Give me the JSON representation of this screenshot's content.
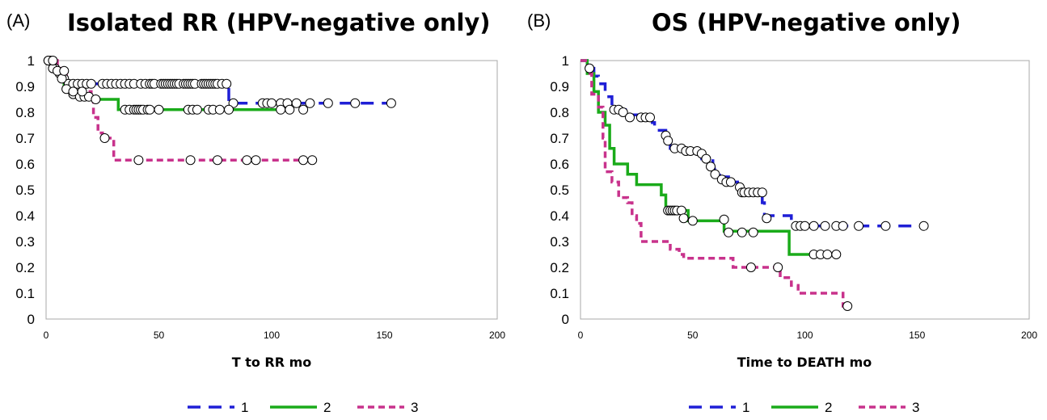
{
  "chart_data": [
    {
      "type": "line",
      "subtype": "kaplan-meier-step",
      "panel_label": "(A)",
      "title": "Isolated RR (HPV-negative only)",
      "xlabel": "T to RR mo",
      "ylabel": "",
      "xlim": [
        0,
        200
      ],
      "ylim": [
        0,
        1
      ],
      "xticks": [
        0,
        50,
        100,
        150,
        200
      ],
      "yticks": [
        0,
        0.1,
        0.2,
        0.3,
        0.4,
        0.5,
        0.6,
        0.7,
        0.8,
        0.9,
        1
      ],
      "legend_position": "bottom",
      "grid": false,
      "series": [
        {
          "name": "1",
          "color": "#1f1fd6",
          "dash": "long-dash",
          "steps": [
            [
              0,
              1
            ],
            [
              3,
              0.97
            ],
            [
              5,
              0.95
            ],
            [
              7,
              0.93
            ],
            [
              9,
              0.91
            ],
            [
              81,
              0.91
            ],
            [
              81,
              0.835
            ],
            [
              154,
              0.835
            ]
          ],
          "censors": [
            [
              1,
              1
            ],
            [
              2,
              1
            ],
            [
              4,
              0.97
            ],
            [
              6,
              0.95
            ],
            [
              8,
              0.93
            ],
            [
              10,
              0.91
            ],
            [
              12,
              0.91
            ],
            [
              14,
              0.91
            ],
            [
              16,
              0.91
            ],
            [
              18,
              0.91
            ],
            [
              20,
              0.91
            ],
            [
              25,
              0.91
            ],
            [
              27,
              0.91
            ],
            [
              29,
              0.91
            ],
            [
              31,
              0.91
            ],
            [
              33,
              0.91
            ],
            [
              35,
              0.91
            ],
            [
              37,
              0.91
            ],
            [
              39,
              0.91
            ],
            [
              42,
              0.91
            ],
            [
              44,
              0.91
            ],
            [
              46,
              0.91
            ],
            [
              47,
              0.91
            ],
            [
              48,
              0.91
            ],
            [
              51,
              0.91
            ],
            [
              52,
              0.91
            ],
            [
              53,
              0.91
            ],
            [
              54,
              0.91
            ],
            [
              55,
              0.91
            ],
            [
              56,
              0.91
            ],
            [
              57,
              0.91
            ],
            [
              58,
              0.91
            ],
            [
              59,
              0.91
            ],
            [
              61,
              0.91
            ],
            [
              62,
              0.91
            ],
            [
              63,
              0.91
            ],
            [
              64,
              0.91
            ],
            [
              65,
              0.91
            ],
            [
              66,
              0.91
            ],
            [
              69,
              0.91
            ],
            [
              70,
              0.91
            ],
            [
              71,
              0.91
            ],
            [
              72,
              0.91
            ],
            [
              73,
              0.91
            ],
            [
              74,
              0.91
            ],
            [
              75,
              0.91
            ],
            [
              76,
              0.91
            ],
            [
              78,
              0.91
            ],
            [
              80,
              0.91
            ],
            [
              83,
              0.835
            ],
            [
              96,
              0.835
            ],
            [
              98,
              0.835
            ],
            [
              100,
              0.835
            ],
            [
              104,
              0.835
            ],
            [
              107,
              0.835
            ],
            [
              111,
              0.835
            ],
            [
              117,
              0.835
            ],
            [
              125,
              0.835
            ],
            [
              137,
              0.835
            ],
            [
              153,
              0.835
            ]
          ]
        },
        {
          "name": "2",
          "color": "#1aab1a",
          "dash": "solid",
          "steps": [
            [
              0,
              1
            ],
            [
              4,
              0.96
            ],
            [
              6,
              0.93
            ],
            [
              8,
              0.89
            ],
            [
              11,
              0.87
            ],
            [
              14,
              0.86
            ],
            [
              20,
              0.85
            ],
            [
              32,
              0.85
            ],
            [
              32,
              0.81
            ],
            [
              100,
              0.81
            ],
            [
              102,
              0.81
            ]
          ],
          "censors": [
            [
              1,
              1
            ],
            [
              3,
              0.97
            ],
            [
              5,
              0.96
            ],
            [
              7,
              0.93
            ],
            [
              9,
              0.89
            ],
            [
              12,
              0.87
            ],
            [
              15,
              0.86
            ],
            [
              17,
              0.86
            ],
            [
              19,
              0.86
            ],
            [
              22,
              0.85
            ],
            [
              35,
              0.81
            ],
            [
              37,
              0.81
            ],
            [
              39,
              0.81
            ],
            [
              40,
              0.81
            ],
            [
              41,
              0.81
            ],
            [
              42,
              0.81
            ],
            [
              43,
              0.81
            ],
            [
              45,
              0.81
            ],
            [
              46,
              0.81
            ],
            [
              50,
              0.81
            ],
            [
              63,
              0.81
            ],
            [
              65,
              0.81
            ],
            [
              67,
              0.81
            ],
            [
              72,
              0.81
            ],
            [
              74,
              0.81
            ],
            [
              77,
              0.81
            ],
            [
              81,
              0.81
            ],
            [
              104,
              0.81
            ],
            [
              108,
              0.81
            ],
            [
              114,
              0.81
            ]
          ]
        },
        {
          "name": "3",
          "color": "#c8328c",
          "dash": "short-dash",
          "steps": [
            [
              0,
              1
            ],
            [
              5,
              0.97
            ],
            [
              7,
              0.95
            ],
            [
              9,
              0.89
            ],
            [
              14,
              0.88
            ],
            [
              20,
              0.86
            ],
            [
              21,
              0.78
            ],
            [
              23,
              0.72
            ],
            [
              25,
              0.7
            ],
            [
              30,
              0.7
            ],
            [
              30,
              0.615
            ],
            [
              114,
              0.615
            ]
          ],
          "censors": [
            [
              3,
              1
            ],
            [
              8,
              0.96
            ],
            [
              12,
              0.88
            ],
            [
              16,
              0.88
            ],
            [
              26,
              0.7
            ],
            [
              41,
              0.615
            ],
            [
              64,
              0.615
            ],
            [
              76,
              0.615
            ],
            [
              89,
              0.615
            ],
            [
              93,
              0.615
            ],
            [
              114,
              0.615
            ],
            [
              118,
              0.615
            ]
          ]
        }
      ]
    },
    {
      "type": "line",
      "subtype": "kaplan-meier-step",
      "panel_label": "(B)",
      "title": "OS (HPV-negative only)",
      "xlabel": "Time to DEATH mo",
      "ylabel": "",
      "xlim": [
        0,
        200
      ],
      "ylim": [
        0,
        1
      ],
      "xticks": [
        0,
        50,
        100,
        150,
        200
      ],
      "yticks": [
        0,
        0.1,
        0.2,
        0.3,
        0.4,
        0.5,
        0.6,
        0.7,
        0.8,
        0.9,
        1
      ],
      "legend_position": "bottom",
      "grid": false,
      "series": [
        {
          "name": "1",
          "color": "#1f1fd6",
          "dash": "long-dash",
          "steps": [
            [
              0,
              1
            ],
            [
              3,
              0.97
            ],
            [
              6,
              0.94
            ],
            [
              8,
              0.91
            ],
            [
              11,
              0.86
            ],
            [
              14,
              0.81
            ],
            [
              20,
              0.79
            ],
            [
              26,
              0.78
            ],
            [
              32,
              0.76
            ],
            [
              33,
              0.73
            ],
            [
              37,
              0.73
            ],
            [
              38,
              0.69
            ],
            [
              40,
              0.66
            ],
            [
              48,
              0.65
            ],
            [
              54,
              0.62
            ],
            [
              59,
              0.58
            ],
            [
              62,
              0.55
            ],
            [
              66,
              0.53
            ],
            [
              70,
              0.5
            ],
            [
              81,
              0.5
            ],
            [
              81,
              0.45
            ],
            [
              82,
              0.4
            ],
            [
              91,
              0.4
            ],
            [
              94,
              0.36
            ],
            [
              154,
              0.36
            ]
          ],
          "censors": [
            [
              4,
              0.97
            ],
            [
              15,
              0.81
            ],
            [
              17,
              0.81
            ],
            [
              19,
              0.8
            ],
            [
              22,
              0.78
            ],
            [
              27,
              0.78
            ],
            [
              29,
              0.78
            ],
            [
              31,
              0.78
            ],
            [
              38,
              0.71
            ],
            [
              39,
              0.69
            ],
            [
              42,
              0.66
            ],
            [
              45,
              0.66
            ],
            [
              47,
              0.65
            ],
            [
              49,
              0.65
            ],
            [
              52,
              0.65
            ],
            [
              54,
              0.64
            ],
            [
              56,
              0.62
            ],
            [
              58,
              0.59
            ],
            [
              60,
              0.56
            ],
            [
              63,
              0.54
            ],
            [
              65,
              0.53
            ],
            [
              67,
              0.53
            ],
            [
              71,
              0.51
            ],
            [
              72,
              0.49
            ],
            [
              73,
              0.49
            ],
            [
              75,
              0.49
            ],
            [
              77,
              0.49
            ],
            [
              79,
              0.49
            ],
            [
              81,
              0.49
            ],
            [
              83,
              0.39
            ],
            [
              96,
              0.36
            ],
            [
              98,
              0.36
            ],
            [
              100,
              0.36
            ],
            [
              104,
              0.36
            ],
            [
              109,
              0.36
            ],
            [
              114,
              0.36
            ],
            [
              117,
              0.36
            ],
            [
              124,
              0.36
            ],
            [
              136,
              0.36
            ],
            [
              153,
              0.36
            ]
          ]
        },
        {
          "name": "2",
          "color": "#1aab1a",
          "dash": "solid",
          "steps": [
            [
              0,
              1
            ],
            [
              3,
              0.95
            ],
            [
              6,
              0.88
            ],
            [
              8,
              0.8
            ],
            [
              11,
              0.75
            ],
            [
              13,
              0.66
            ],
            [
              15,
              0.6
            ],
            [
              21,
              0.6
            ],
            [
              21,
              0.56
            ],
            [
              25,
              0.52
            ],
            [
              36,
              0.52
            ],
            [
              36,
              0.48
            ],
            [
              38,
              0.44
            ],
            [
              38,
              0.42
            ],
            [
              48,
              0.42
            ],
            [
              48,
              0.38
            ],
            [
              64,
              0.38
            ],
            [
              64,
              0.34
            ],
            [
              93,
              0.34
            ],
            [
              93,
              0.25
            ],
            [
              109,
              0.25
            ]
          ],
          "censors": [
            [
              39,
              0.42
            ],
            [
              40,
              0.42
            ],
            [
              41,
              0.42
            ],
            [
              42,
              0.42
            ],
            [
              43,
              0.42
            ],
            [
              45,
              0.42
            ],
            [
              46,
              0.39
            ],
            [
              50,
              0.38
            ],
            [
              64,
              0.385
            ],
            [
              66,
              0.335
            ],
            [
              72,
              0.335
            ],
            [
              77,
              0.335
            ],
            [
              104,
              0.25
            ],
            [
              107,
              0.25
            ],
            [
              110,
              0.25
            ],
            [
              114,
              0.25
            ]
          ]
        },
        {
          "name": "3",
          "color": "#c8328c",
          "dash": "short-dash",
          "steps": [
            [
              0,
              1
            ],
            [
              3,
              0.95
            ],
            [
              5,
              0.87
            ],
            [
              8,
              0.82
            ],
            [
              10,
              0.7
            ],
            [
              11,
              0.57
            ],
            [
              14,
              0.53
            ],
            [
              17,
              0.47
            ],
            [
              21,
              0.45
            ],
            [
              23,
              0.4
            ],
            [
              25,
              0.37
            ],
            [
              27,
              0.3
            ],
            [
              40,
              0.3
            ],
            [
              40,
              0.27
            ],
            [
              44,
              0.25
            ],
            [
              46,
              0.235
            ],
            [
              68,
              0.235
            ],
            [
              68,
              0.2
            ],
            [
              89,
              0.2
            ],
            [
              89,
              0.16
            ],
            [
              94,
              0.13
            ],
            [
              97,
              0.1
            ],
            [
              117,
              0.1
            ],
            [
              117,
              0.05
            ],
            [
              118,
              0.05
            ]
          ],
          "censors": [
            [
              76,
              0.2
            ],
            [
              88,
              0.2
            ],
            [
              119,
              0.05
            ]
          ]
        }
      ]
    }
  ]
}
